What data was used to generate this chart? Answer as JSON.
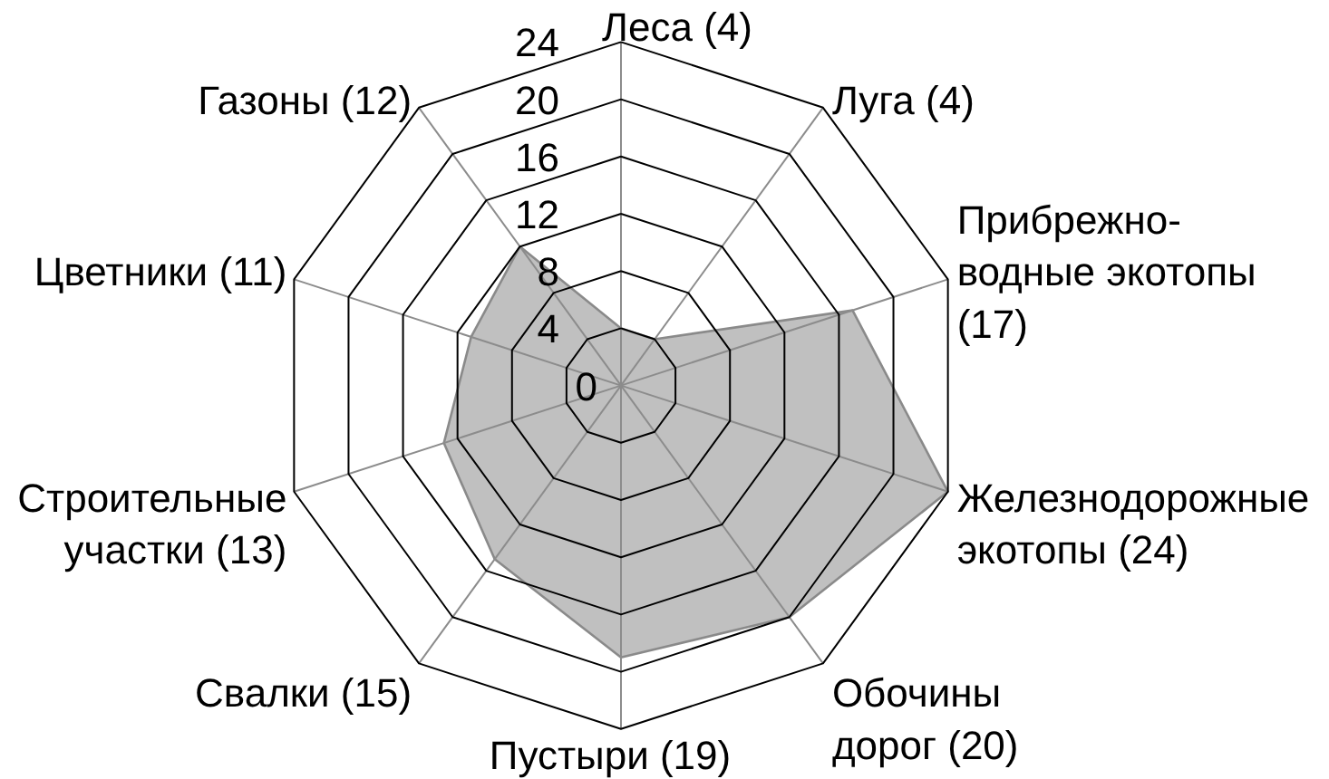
{
  "chart_data": {
    "type": "radar",
    "categories": [
      "Леса (4)",
      "Луга (4)",
      "Прибрежно-\nводные экотопы\n(17)",
      "Железнодорожные\nэкотопы (24)",
      "Обочины\nдорог (20)",
      "Пустыри (19)",
      "Свалки (15)",
      "Строительные\nучастки (13)",
      "Цветники (11)",
      "Газоны (12)"
    ],
    "series": [
      {
        "color": "#c0c0c0",
        "values": [
          4,
          4,
          17,
          24,
          20,
          19,
          15,
          13,
          11,
          12
        ]
      }
    ],
    "ylim": [
      0,
      24
    ],
    "yticks": [
      0,
      4,
      8,
      12,
      16,
      20,
      24
    ],
    "grid": true
  }
}
